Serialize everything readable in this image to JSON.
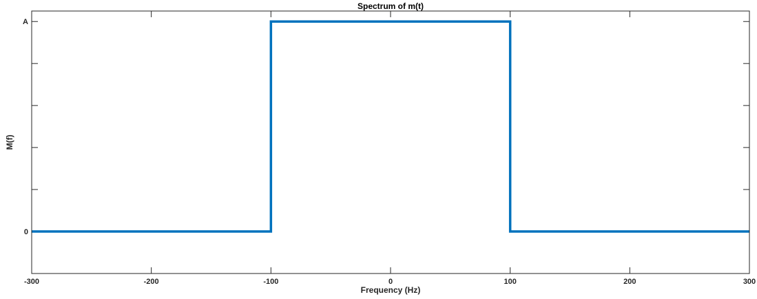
{
  "chart_data": {
    "type": "line",
    "title": "Spectrum of m(t)",
    "xlabel": "Frequency (Hz)",
    "ylabel": "M(f)",
    "xlim": [
      -300,
      300
    ],
    "ylim": [
      -0.2,
      1.05
    ],
    "x_ticks": [
      {
        "value": -300,
        "label": "-300"
      },
      {
        "value": -200,
        "label": "-200"
      },
      {
        "value": -100,
        "label": "-100"
      },
      {
        "value": 0,
        "label": "0"
      },
      {
        "value": 100,
        "label": "100"
      },
      {
        "value": 200,
        "label": "200"
      },
      {
        "value": 300,
        "label": "300"
      }
    ],
    "y_ticks": [
      {
        "value": 0,
        "label": "0"
      },
      {
        "value": 0.2,
        "label": ""
      },
      {
        "value": 0.4,
        "label": ""
      },
      {
        "value": 0.6,
        "label": ""
      },
      {
        "value": 0.8,
        "label": ""
      },
      {
        "value": 1.0,
        "label": "A"
      }
    ],
    "grid": false,
    "series": [
      {
        "color": "#0072BD",
        "x": [
          -300,
          -100,
          -100,
          100,
          100,
          300
        ],
        "y": [
          0,
          0,
          1,
          1,
          0,
          0
        ]
      }
    ]
  }
}
